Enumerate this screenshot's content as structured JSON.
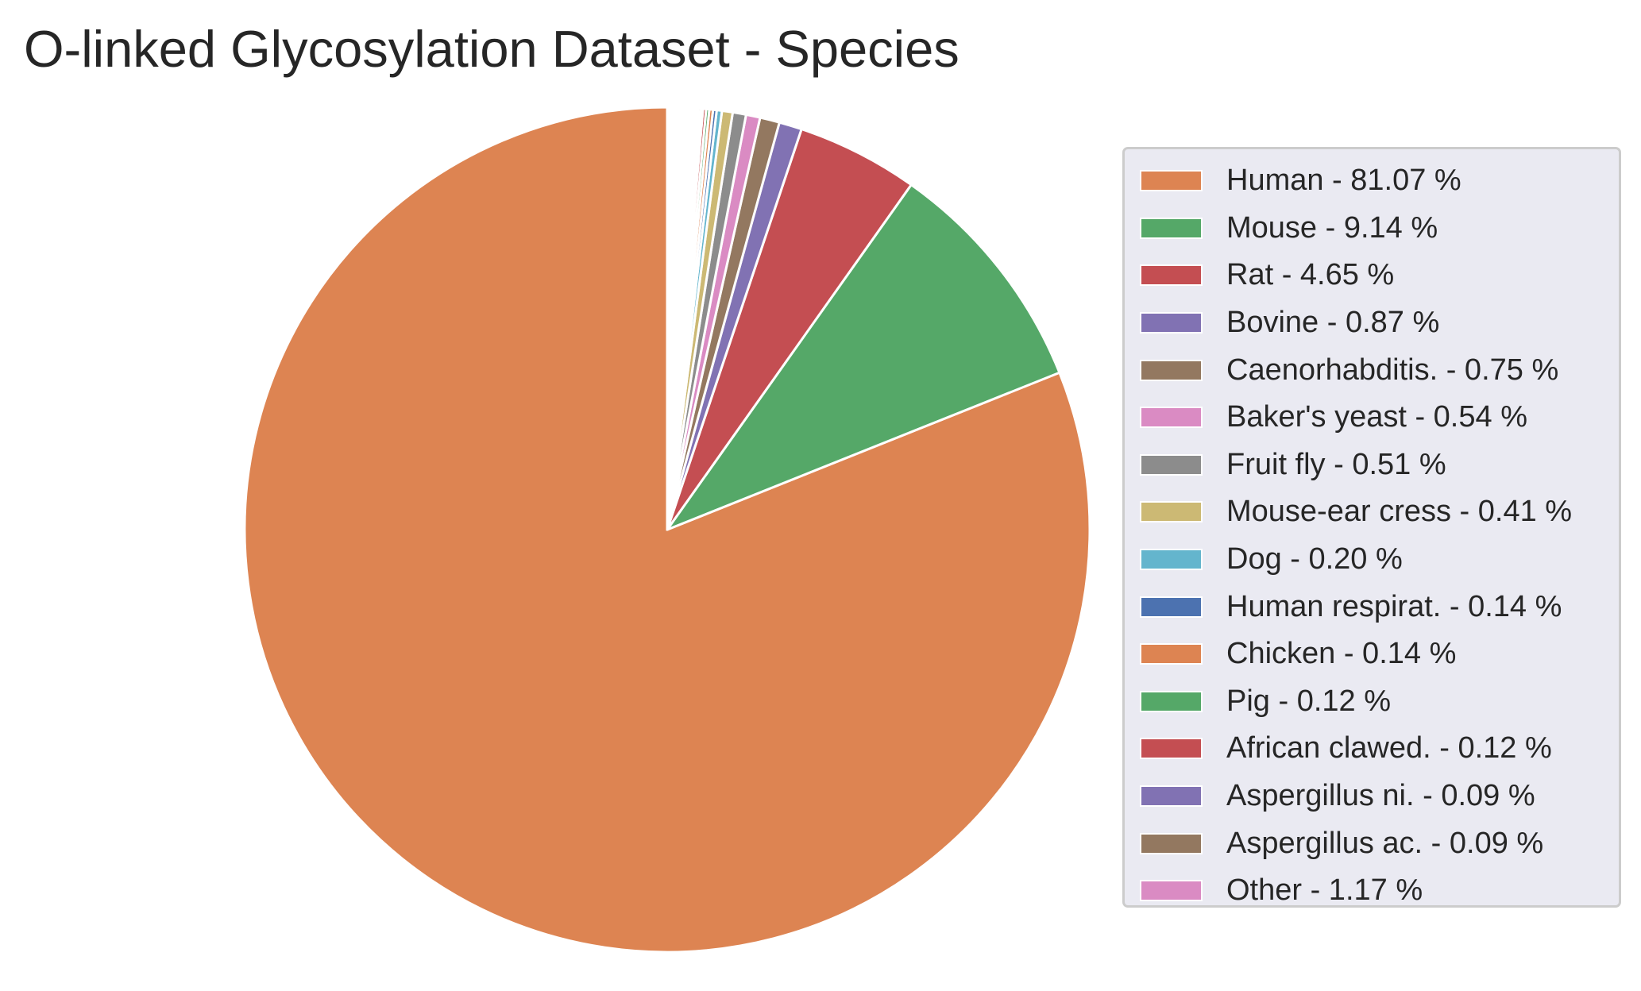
{
  "chart_data": {
    "type": "pie",
    "title": "O-linked Glycosylation Dataset - Species",
    "start_angle": "top",
    "direction": "counterclockwise",
    "legend_position": "right",
    "slices": [
      {
        "label": "Human - 81.07 %",
        "name": "Human",
        "value": 81.07,
        "color": "#dd8452"
      },
      {
        "label": "Mouse - 9.14 %",
        "name": "Mouse",
        "value": 9.14,
        "color": "#55a868"
      },
      {
        "label": "Rat - 4.65 %",
        "name": "Rat",
        "value": 4.65,
        "color": "#c44e52"
      },
      {
        "label": "Bovine - 0.87 %",
        "name": "Bovine",
        "value": 0.87,
        "color": "#8172b3"
      },
      {
        "label": "Caenorhabditis. - 0.75 %",
        "name": "Caenorhabditis.",
        "value": 0.75,
        "color": "#937860"
      },
      {
        "label": "Baker's yeast - 0.54 %",
        "name": "Baker's yeast",
        "value": 0.54,
        "color": "#da8bc3"
      },
      {
        "label": "Fruit fly - 0.51 %",
        "name": "Fruit fly",
        "value": 0.51,
        "color": "#8c8c8c"
      },
      {
        "label": "Mouse-ear cress - 0.41 %",
        "name": "Mouse-ear cress",
        "value": 0.41,
        "color": "#ccb974"
      },
      {
        "label": "Dog - 0.20 %",
        "name": "Dog",
        "value": 0.2,
        "color": "#64b5cd"
      },
      {
        "label": "Human respirat. - 0.14 %",
        "name": "Human respirat.",
        "value": 0.14,
        "color": "#4c72b0"
      },
      {
        "label": "Chicken - 0.14 %",
        "name": "Chicken",
        "value": 0.14,
        "color": "#dd8452"
      },
      {
        "label": "Pig - 0.12 %",
        "name": "Pig",
        "value": 0.12,
        "color": "#55a868"
      },
      {
        "label": "African clawed. - 0.12 %",
        "name": "African clawed.",
        "value": 0.12,
        "color": "#c44e52"
      },
      {
        "label": "Aspergillus ni. - 0.09 %",
        "name": "Aspergillus ni.",
        "value": 0.09,
        "color": "#8172b3"
      },
      {
        "label": "Aspergillus ac. - 0.09 %",
        "name": "Aspergillus ac.",
        "value": 0.09,
        "color": "#937860"
      },
      {
        "label": "Other - 1.17 %",
        "name": "Other",
        "value": 1.17,
        "color": "#ffffff",
        "legend_color": "#da8bc3"
      }
    ]
  },
  "colors": {
    "legend_background": "#eaeaf2",
    "legend_border": "#cccccc",
    "slice_edge": "#ffffff"
  }
}
